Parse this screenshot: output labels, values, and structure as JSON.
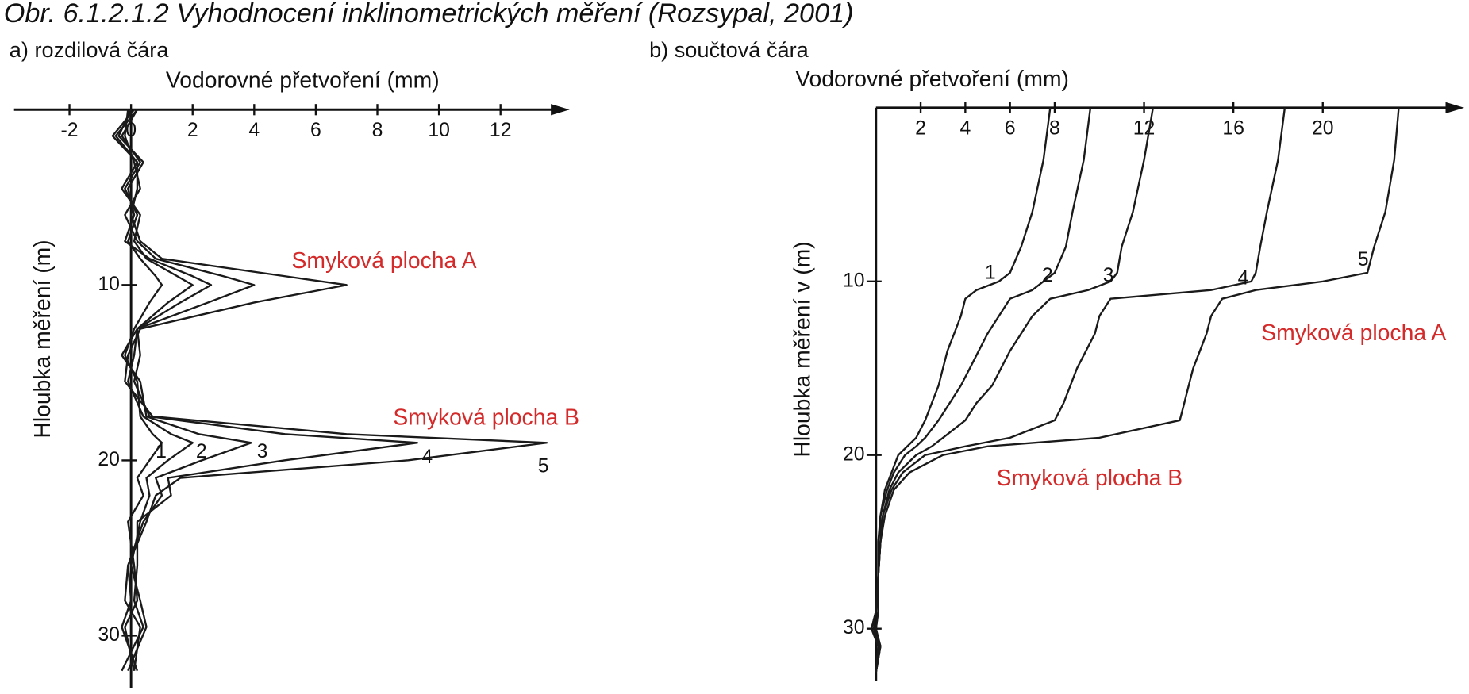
{
  "title": "Obr. 6.1.2.1.2  Vyhodnocení inklinometrických měření  (Rozsypal, 2001)",
  "chart_data": [
    {
      "type": "line",
      "subtitle": "a) rozdilová čára",
      "x_label": "Vodorovné přetvoření (mm)",
      "y_label": "Hloubka měření (m)",
      "xlim": [
        -3.8,
        14
      ],
      "xticks": [
        -2,
        0,
        2,
        4,
        6,
        8,
        10,
        12
      ],
      "ylim": [
        0,
        33
      ],
      "yticks": [
        10,
        20,
        30
      ],
      "y_inverted": true,
      "color": "#1a1a1a",
      "annotations": [
        "Smyková plocha A",
        "Smyková plocha B"
      ],
      "annotation_color": "#d42a2a",
      "y": [
        0,
        1.5,
        3,
        4.5,
        6,
        7.5,
        8.5,
        9.5,
        10,
        11,
        12.5,
        14,
        15.5,
        17.5,
        18.5,
        19,
        20,
        21,
        22,
        23.5,
        26,
        28,
        29.5,
        32
      ],
      "series": [
        {
          "name": "1",
          "values": [
            0.2,
            -0.3,
            0.3,
            -0.2,
            0.2,
            -0.1,
            0.3,
            0.8,
            1.0,
            0.6,
            0.1,
            -0.2,
            0.2,
            0.3,
            0.7,
            1.0,
            0.6,
            0.2,
            0.4,
            -0.1,
            0.1,
            0.2,
            -0.2,
            0.1
          ]
        },
        {
          "name": "2",
          "values": [
            0.1,
            -0.6,
            0.2,
            -0.3,
            0.3,
            0.1,
            0.5,
            1.5,
            2.0,
            1.2,
            0.2,
            0.1,
            -0.1,
            0.4,
            1.3,
            2.0,
            1.2,
            0.5,
            0.6,
            0.3,
            0,
            0.3,
            0.5,
            -0.1
          ]
        },
        {
          "name": "3",
          "values": [
            0,
            -0.4,
            0.4,
            -0.1,
            0.1,
            -0.2,
            0.6,
            2.0,
            2.6,
            1.6,
            0.2,
            -0.3,
            0.3,
            0.5,
            2.2,
            3.9,
            2.3,
            0.8,
            1.0,
            0.4,
            -0.1,
            -0.2,
            0.3,
            0.1
          ]
        },
        {
          "name": "4",
          "values": [
            -0.1,
            -0.2,
            0.1,
            0.3,
            -0.2,
            0.2,
            0.8,
            3.0,
            4.0,
            2.5,
            0.2,
            0.3,
            0.1,
            0.6,
            5.0,
            9.3,
            5.0,
            1.2,
            1.3,
            0.2,
            0.2,
            0.1,
            0.4,
            -0.3
          ]
        },
        {
          "name": "5",
          "values": [
            0.2,
            -0.5,
            0.2,
            0.2,
            0,
            0.3,
            1.0,
            5.0,
            7.0,
            4.0,
            0.3,
            -0.1,
            -0.2,
            0.7,
            7.0,
            13.5,
            9.0,
            1.6,
            0.8,
            0.5,
            -0.1,
            0,
            -0.3,
            0.2
          ]
        }
      ]
    },
    {
      "type": "line",
      "subtitle": "b) součtová čára",
      "x_label": "Vodorovné přetvoření (mm)",
      "y_label": "Hloubka měření v (m)",
      "xlim": [
        0,
        26
      ],
      "xticks": [
        2,
        4,
        6,
        8,
        12,
        16,
        20
      ],
      "ylim": [
        0,
        33
      ],
      "yticks": [
        10,
        20,
        30
      ],
      "y_inverted": true,
      "color": "#1a1a1a",
      "annotations": [
        "Smyková plocha A",
        "Smyková plocha B"
      ],
      "annotation_color": "#d42a2a",
      "y": [
        0,
        3,
        6,
        8,
        9.5,
        10,
        10.5,
        11,
        12,
        13,
        14,
        15,
        16,
        17,
        18,
        19,
        19.5,
        20,
        21,
        22,
        23.5,
        25,
        27,
        29,
        30,
        31,
        32.5
      ],
      "series": [
        {
          "name": "1",
          "values": [
            7.8,
            7.5,
            7,
            6.5,
            6,
            5.5,
            4.5,
            4,
            3.8,
            3.5,
            3.2,
            3,
            2.8,
            2.5,
            2.2,
            1.8,
            1.4,
            1.0,
            0.7,
            0.4,
            0.2,
            0.1,
            0.1,
            0.0,
            -0.2,
            0.1,
            0.0
          ]
        },
        {
          "name": "2",
          "values": [
            9.6,
            9.3,
            8.8,
            8.5,
            8,
            7.5,
            7,
            6,
            5.5,
            5,
            4.6,
            4.2,
            3.8,
            3.3,
            2.8,
            2.2,
            1.8,
            1.3,
            0.8,
            0.5,
            0.2,
            0.2,
            0.1,
            0.1,
            0,
            0.2,
            0.0
          ]
        },
        {
          "name": "3",
          "values": [
            12.4,
            12,
            11.5,
            11,
            10.8,
            10.5,
            9.5,
            7.8,
            7.0,
            6.5,
            6,
            5.6,
            5.2,
            4.5,
            4,
            3,
            2.5,
            1.8,
            1.0,
            0.6,
            0.3,
            0.2,
            0.1,
            0,
            -0.2,
            0.2,
            0
          ]
        },
        {
          "name": "4",
          "values": [
            18.3,
            18,
            17.5,
            17.2,
            17,
            16.8,
            15,
            10.5,
            10,
            9.8,
            9.4,
            9,
            8.7,
            8.4,
            8.0,
            6,
            4,
            2.2,
            1.2,
            0.7,
            0.3,
            0.2,
            0.1,
            0.1,
            0,
            0.1,
            0
          ]
        },
        {
          "name": "5",
          "values": [
            23.4,
            23.2,
            22.8,
            22.3,
            22,
            20,
            17,
            15.5,
            15,
            14.8,
            14.5,
            14.2,
            14,
            13.8,
            13.6,
            10,
            5,
            3,
            1.5,
            0.8,
            0.4,
            0.2,
            0.1,
            0,
            -0.1,
            0.2,
            0
          ]
        }
      ]
    }
  ]
}
